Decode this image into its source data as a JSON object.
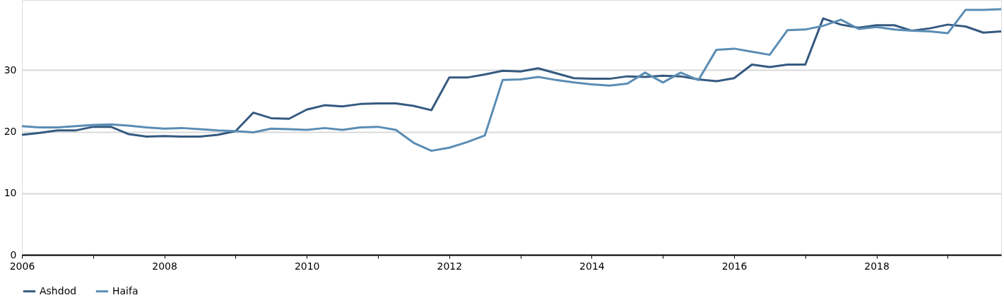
{
  "chart_data": {
    "type": "line",
    "x": [
      2006,
      2006.25,
      2006.5,
      2006.75,
      2007,
      2007.25,
      2007.5,
      2007.75,
      2008,
      2008.25,
      2008.5,
      2008.75,
      2009,
      2009.25,
      2009.5,
      2009.75,
      2010,
      2010.25,
      2010.5,
      2010.75,
      2011,
      2011.25,
      2011.5,
      2011.75,
      2012,
      2012.25,
      2012.5,
      2012.75,
      2013,
      2013.25,
      2013.5,
      2013.75,
      2014,
      2014.25,
      2014.5,
      2014.75,
      2015,
      2015.25,
      2015.5,
      2015.75,
      2016,
      2016.25,
      2016.5,
      2016.75,
      2017,
      2017.25,
      2017.5,
      2017.75,
      2018,
      2018.25,
      2018.5,
      2018.75,
      2019,
      2019.25,
      2019.5,
      2019.75
    ],
    "series": [
      {
        "name": "Ashdod",
        "color": "#355a80",
        "values": [
          19.5,
          19.8,
          20.2,
          20.2,
          20.8,
          20.8,
          19.6,
          19.2,
          19.3,
          19.2,
          19.2,
          19.5,
          20.1,
          23.1,
          22.2,
          22.1,
          23.6,
          24.3,
          24.1,
          24.5,
          24.6,
          24.6,
          24.2,
          23.5,
          28.8,
          28.8,
          29.3,
          29.9,
          29.8,
          30.3,
          29.5,
          28.7,
          28.6,
          28.6,
          29.0,
          28.9,
          29.1,
          29.0,
          28.5,
          28.2,
          28.7,
          30.9,
          30.5,
          30.9,
          30.9,
          38.4,
          37.4,
          36.9,
          37.3,
          37.3,
          36.4,
          36.8,
          37.4,
          37.1,
          36.1,
          36.3
        ]
      },
      {
        "name": "Haifa",
        "color": "#5a8db5",
        "values": [
          20.9,
          20.7,
          20.7,
          20.9,
          21.1,
          21.2,
          21.0,
          20.7,
          20.5,
          20.6,
          20.4,
          20.2,
          20.1,
          19.9,
          20.5,
          20.4,
          20.3,
          20.6,
          20.3,
          20.7,
          20.8,
          20.3,
          18.2,
          16.9,
          17.4,
          18.3,
          19.4,
          28.4,
          28.5,
          28.9,
          28.4,
          28.0,
          27.7,
          27.5,
          27.8,
          29.6,
          28.0,
          29.6,
          28.4,
          33.3,
          33.5,
          33.0,
          32.5,
          36.5,
          36.6,
          37.2,
          38.2,
          36.7,
          37.0,
          36.6,
          36.4,
          36.3,
          36.0,
          39.8,
          39.8,
          39.9
        ]
      }
    ],
    "xlim": [
      2006,
      2019.75
    ],
    "xticks": [
      2006,
      {
        "value": 2007,
        "label": null
      },
      2008,
      {
        "value": 2009,
        "label": null
      },
      2010,
      {
        "value": 2011,
        "label": null
      },
      2012,
      {
        "value": 2013,
        "label": null
      },
      2014,
      {
        "value": 2015,
        "label": null
      },
      2016,
      {
        "value": 2017,
        "label": null
      },
      2018,
      {
        "value": 2019,
        "label": null
      }
    ],
    "ylim": [
      0,
      41.4
    ],
    "yticks": [
      0,
      10,
      20,
      30
    ],
    "grid": "y",
    "legend": "bottom",
    "marker": "none",
    "line_style": "solid"
  }
}
